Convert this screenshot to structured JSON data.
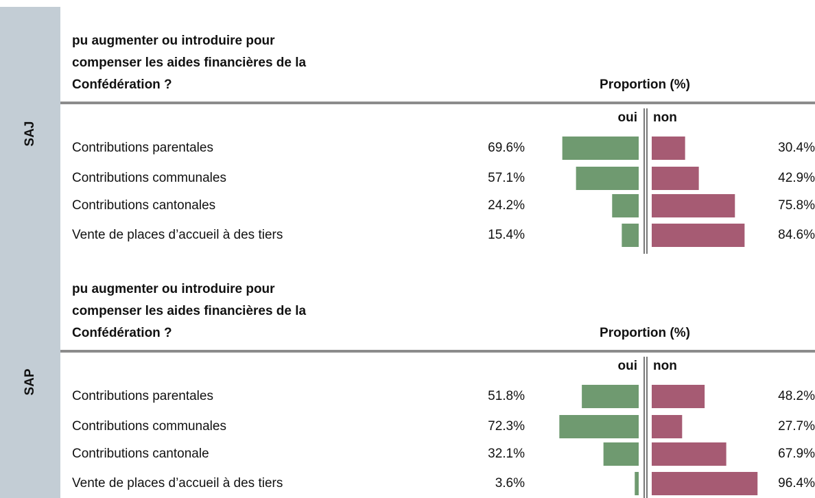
{
  "chart_data": [
    {
      "type": "bar",
      "group": "SAJ",
      "title_lines": [
        "pu augmenter ou introduire pour",
        "compenser les aides financières de la",
        "Confédération ?"
      ],
      "value_axis_label": "Proportion (%)",
      "categories": [
        "Contributions parentales",
        "Contributions communales",
        "Contributions cantonales",
        "Vente de places d’accueil à des tiers"
      ],
      "series": [
        {
          "name": "oui",
          "color": "#6f9a70",
          "values": [
            69.6,
            57.1,
            24.2,
            15.4
          ],
          "value_labels": [
            "69.6%",
            "57.1%",
            "24.2%",
            "15.4%"
          ]
        },
        {
          "name": "non",
          "color": "#a65b73",
          "values": [
            30.4,
            42.9,
            75.8,
            84.6
          ],
          "value_labels": [
            "30.4%",
            "42.9%",
            "75.8%",
            "84.6%"
          ]
        }
      ]
    },
    {
      "type": "bar",
      "group": "SAP",
      "title_lines": [
        "pu augmenter ou introduire pour",
        "compenser les aides financières de la",
        "Confédération ?"
      ],
      "value_axis_label": "Proportion (%)",
      "categories": [
        "Contributions parentales",
        "Contributions communales",
        "Contributions cantonale",
        "Vente de places d’accueil à des tiers"
      ],
      "series": [
        {
          "name": "oui",
          "color": "#6f9a70",
          "values": [
            51.8,
            72.3,
            32.1,
            3.6
          ],
          "value_labels": [
            "51.8%",
            "72.3%",
            "32.1%",
            "3.6%"
          ]
        },
        {
          "name": "non",
          "color": "#a65b73",
          "values": [
            48.2,
            27.7,
            67.9,
            96.4
          ],
          "value_labels": [
            "48.2%",
            "27.7%",
            "67.9%",
            "96.4%"
          ]
        }
      ]
    }
  ]
}
